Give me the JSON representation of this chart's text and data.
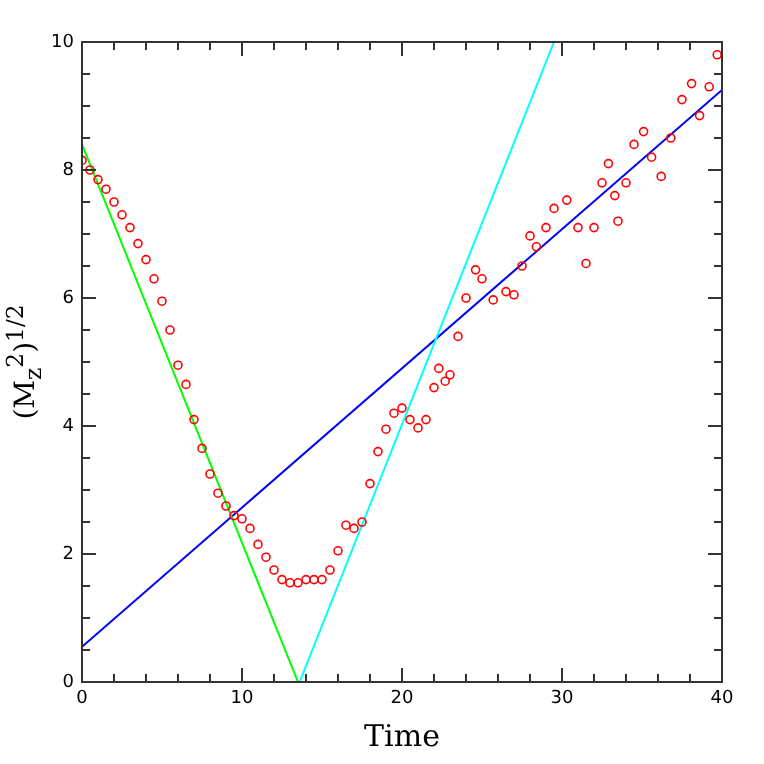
{
  "chart_data": {
    "type": "line",
    "xlabel": "Time",
    "ylabel": "(M$_{z}$$^{2}$)$^{1/2}$",
    "xlim": [
      0,
      40
    ],
    "ylim": [
      0,
      10
    ],
    "xticks": [
      0,
      {
        "value": 2,
        "label": null
      },
      {
        "value": 4,
        "label": null
      },
      {
        "value": 6,
        "label": null
      },
      {
        "value": 8,
        "label": null
      },
      10,
      {
        "value": 12,
        "label": null
      },
      {
        "value": 14,
        "label": null
      },
      {
        "value": 16,
        "label": null
      },
      {
        "value": 18,
        "label": null
      },
      20,
      {
        "value": 22,
        "label": null
      },
      {
        "value": 24,
        "label": null
      },
      {
        "value": 26,
        "label": null
      },
      {
        "value": 28,
        "label": null
      },
      30,
      {
        "value": 32,
        "label": null
      },
      {
        "value": 34,
        "label": null
      },
      {
        "value": 36,
        "label": null
      },
      {
        "value": 38,
        "label": null
      },
      40
    ],
    "yticks": [
      0,
      {
        "value": 0.5,
        "label": null
      },
      {
        "value": 1,
        "label": null
      },
      {
        "value": 1.5,
        "label": null
      },
      2,
      {
        "value": 2.5,
        "label": null
      },
      {
        "value": 3,
        "label": null
      },
      {
        "value": 3.5,
        "label": null
      },
      4,
      {
        "value": 4.5,
        "label": null
      },
      {
        "value": 5,
        "label": null
      },
      {
        "value": 5.5,
        "label": null
      },
      6,
      {
        "value": 6.5,
        "label": null
      },
      {
        "value": 7,
        "label": null
      },
      {
        "value": 7.5,
        "label": null
      },
      8,
      {
        "value": 8.5,
        "label": null
      },
      {
        "value": 9,
        "label": null
      },
      {
        "value": 9.5,
        "label": null
      },
      10
    ],
    "grid": false,
    "legend": false,
    "series": [
      {
        "type": "scatter",
        "marker": "circle",
        "color": "#ff0000",
        "x": [
          0,
          0.5,
          1,
          1.5,
          2,
          2.5,
          3,
          3.5,
          4,
          4.5,
          5,
          5.5,
          6,
          6.5,
          7,
          7.5,
          8,
          8.5,
          9,
          9.5,
          10,
          10.5,
          11,
          11.5,
          12,
          12.5,
          13,
          13.5,
          14,
          14.5,
          15,
          15.5,
          16,
          16.5,
          17,
          17.5,
          18,
          18.5,
          19,
          19.5,
          20,
          20.5,
          21,
          21.5,
          22,
          22.3,
          22.7,
          23,
          23.5,
          24,
          24.6,
          25,
          25.7,
          26.5,
          27,
          27.5,
          28,
          28.4,
          29,
          29.5,
          30.3,
          31,
          31.5,
          32,
          32.5,
          32.9,
          33.3,
          33.5,
          34,
          34.5,
          35.1,
          35.6,
          36.2,
          36.8,
          37.5,
          38.1,
          38.6,
          39.2,
          39.7
        ],
        "values": [
          8.15,
          8.0,
          7.85,
          7.7,
          7.5,
          7.3,
          7.1,
          6.85,
          6.6,
          6.3,
          5.95,
          5.5,
          4.95,
          4.65,
          4.1,
          3.65,
          3.25,
          2.95,
          2.75,
          2.6,
          2.55,
          2.4,
          2.15,
          1.95,
          1.75,
          1.6,
          1.55,
          1.55,
          1.6,
          1.6,
          1.6,
          1.75,
          2.05,
          2.45,
          2.4,
          2.5,
          3.1,
          3.6,
          3.95,
          4.2,
          4.28,
          4.1,
          3.97,
          4.1,
          4.6,
          4.9,
          4.7,
          4.8,
          5.4,
          6.0,
          6.44,
          6.3,
          5.97,
          6.1,
          6.05,
          6.5,
          6.97,
          6.8,
          7.1,
          7.4,
          7.53,
          7.1,
          6.54,
          7.1,
          7.8,
          8.1,
          7.6,
          7.2,
          7.8,
          8.4,
          8.6,
          8.2,
          7.9,
          8.5,
          9.1,
          9.35,
          8.85,
          9.3,
          9.8
        ]
      },
      {
        "type": "line",
        "marker": "none",
        "color": "#00ff00",
        "x": [
          0,
          13.5
        ],
        "values": [
          8.4,
          0
        ]
      },
      {
        "type": "line",
        "marker": "none",
        "color": "#00ffff",
        "x": [
          13.6,
          29.5
        ],
        "values": [
          0,
          10
        ]
      },
      {
        "type": "line",
        "marker": "none",
        "color": "#0000ff",
        "x": [
          0,
          40
        ],
        "values": [
          0.55,
          9.25
        ]
      }
    ]
  }
}
